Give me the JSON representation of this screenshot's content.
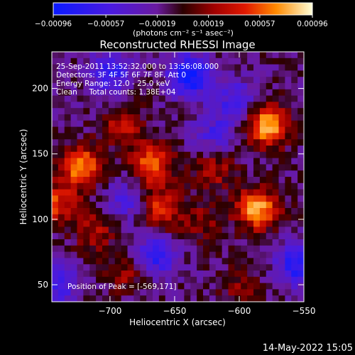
{
  "chart_data": {
    "type": "heatmap",
    "title": "Reconstructed RHESSI Image",
    "xlabel": "Heliocentric X (arcsec)",
    "ylabel": "Heliocentric Y (arcsec)",
    "xlim": [
      -745,
      -550
    ],
    "ylim": [
      37,
      228
    ],
    "x_ticks": [
      -700,
      -650,
      -600,
      -550
    ],
    "x_tick_labels": [
      "−700",
      "−650",
      "−600",
      "−550"
    ],
    "y_ticks": [
      50,
      100,
      150,
      200
    ],
    "y_tick_labels": [
      "50",
      "100",
      "150",
      "200"
    ],
    "colorbar": {
      "min": -0.00096,
      "max": 0.00096,
      "ticks": [
        -0.00096,
        -0.00057,
        -0.00019,
        0.00019,
        0.00057,
        0.00096
      ],
      "tick_labels": [
        "−0.00096",
        "−0.00057",
        "−0.00019",
        "0.00019",
        "0.00057",
        "0.00096"
      ],
      "units_label": "(photons cm⁻² s⁻¹ asec⁻²)"
    },
    "hotspots": [
      {
        "x": -722,
        "y": 140,
        "value": 0.00085
      },
      {
        "x": -668,
        "y": 142,
        "value": 0.00075
      },
      {
        "x": -660,
        "y": 108,
        "value": 0.0006
      },
      {
        "x": -690,
        "y": 172,
        "value": 0.00045
      },
      {
        "x": -578,
        "y": 172,
        "value": 0.00096
      },
      {
        "x": -586,
        "y": 108,
        "value": 0.0009
      },
      {
        "x": -742,
        "y": 112,
        "value": 0.0006
      },
      {
        "x": -712,
        "y": 92,
        "value": 0.0004
      },
      {
        "x": -620,
        "y": 138,
        "value": 0.0004
      },
      {
        "x": -688,
        "y": 60,
        "value": 0.00035
      },
      {
        "x": -600,
        "y": 48,
        "value": 0.00025
      },
      {
        "x": -628,
        "y": 98,
        "value": 0.0003
      }
    ],
    "coldspots": [
      {
        "x": -638,
        "y": 210,
        "value": -0.0009
      },
      {
        "x": -700,
        "y": 212,
        "value": -0.0006
      },
      {
        "x": -665,
        "y": 72,
        "value": -0.0006
      },
      {
        "x": -555,
        "y": 65,
        "value": -0.0007
      },
      {
        "x": -603,
        "y": 190,
        "value": -0.0005
      },
      {
        "x": -688,
        "y": 115,
        "value": -0.0004
      },
      {
        "x": -620,
        "y": 165,
        "value": -0.0004
      },
      {
        "x": -740,
        "y": 50,
        "value": -0.0005
      }
    ]
  },
  "info": {
    "line1": "25-Sep-2011 13:52:32.000 to 13:56:08.000",
    "line2": "Detectors: 3F 4F 5F 6F 7F 8F, Att 0",
    "line3": "Energy Range: 12.0 - 25.0 keV",
    "line4": "Clean     Total counts: 1.38E+04",
    "peak": "Position of Peak = [-569,171]"
  },
  "footer_date": "14-May-2022 15:05"
}
